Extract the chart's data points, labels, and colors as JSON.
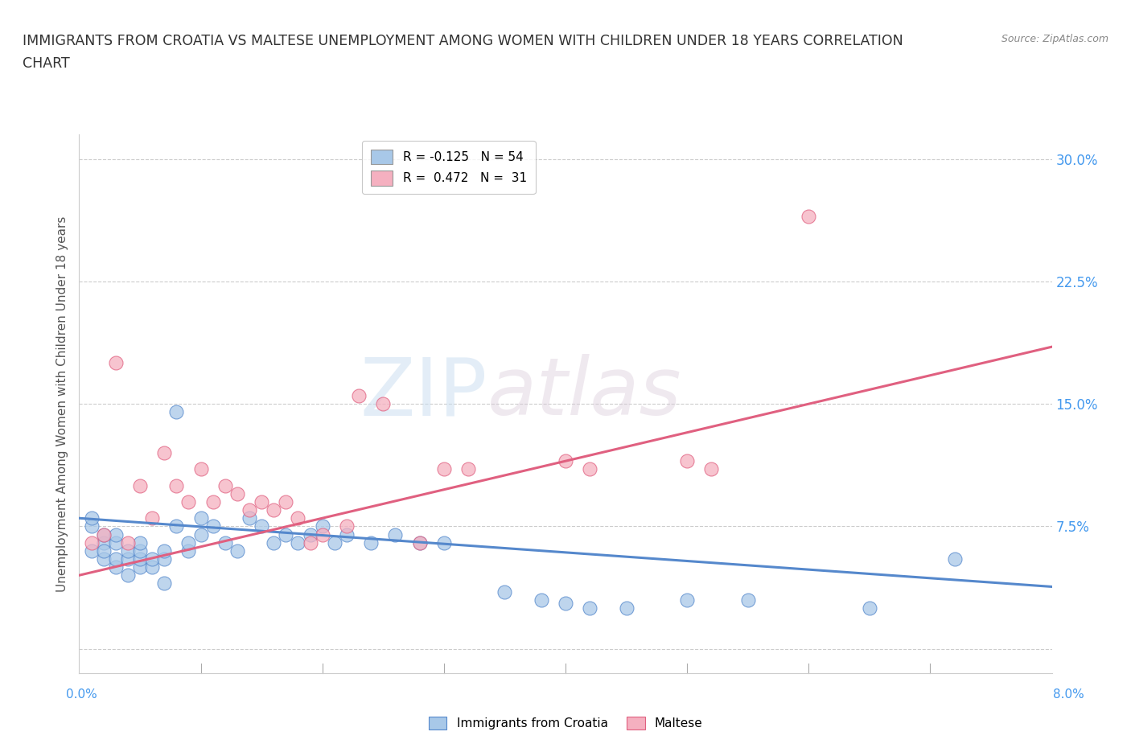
{
  "title_line1": "IMMIGRANTS FROM CROATIA VS MALTESE UNEMPLOYMENT AMONG WOMEN WITH CHILDREN UNDER 18 YEARS CORRELATION",
  "title_line2": "CHART",
  "source": "Source: ZipAtlas.com",
  "ylabel": "Unemployment Among Women with Children Under 18 years",
  "ytick_vals": [
    0.0,
    0.075,
    0.15,
    0.225,
    0.3
  ],
  "ytick_labels": [
    "",
    "7.5%",
    "15.0%",
    "22.5%",
    "30.0%"
  ],
  "xmin": 0.0,
  "xmax": 0.08,
  "ymin": -0.015,
  "ymax": 0.315,
  "legend_entries": [
    {
      "label": "R = -0.125   N = 54",
      "color": "#a8c8e8"
    },
    {
      "label": "R =  0.472   N =  31",
      "color": "#f5b0c0"
    }
  ],
  "croatia_color": "#a8c8e8",
  "maltese_color": "#f5b0c0",
  "croatia_edge": "#5588cc",
  "maltese_edge": "#e06080",
  "croatia_points_x": [
    0.001,
    0.001,
    0.001,
    0.002,
    0.002,
    0.002,
    0.002,
    0.003,
    0.003,
    0.003,
    0.003,
    0.004,
    0.004,
    0.004,
    0.005,
    0.005,
    0.005,
    0.005,
    0.006,
    0.006,
    0.007,
    0.007,
    0.007,
    0.008,
    0.008,
    0.009,
    0.009,
    0.01,
    0.01,
    0.011,
    0.012,
    0.013,
    0.014,
    0.015,
    0.016,
    0.017,
    0.018,
    0.019,
    0.02,
    0.021,
    0.022,
    0.024,
    0.026,
    0.028,
    0.03,
    0.035,
    0.038,
    0.04,
    0.042,
    0.045,
    0.05,
    0.055,
    0.065,
    0.072
  ],
  "croatia_points_y": [
    0.075,
    0.08,
    0.06,
    0.065,
    0.07,
    0.055,
    0.06,
    0.05,
    0.055,
    0.065,
    0.07,
    0.045,
    0.055,
    0.06,
    0.05,
    0.055,
    0.06,
    0.065,
    0.05,
    0.055,
    0.055,
    0.06,
    0.04,
    0.075,
    0.145,
    0.06,
    0.065,
    0.07,
    0.08,
    0.075,
    0.065,
    0.06,
    0.08,
    0.075,
    0.065,
    0.07,
    0.065,
    0.07,
    0.075,
    0.065,
    0.07,
    0.065,
    0.07,
    0.065,
    0.065,
    0.035,
    0.03,
    0.028,
    0.025,
    0.025,
    0.03,
    0.03,
    0.025,
    0.055
  ],
  "maltese_points_x": [
    0.001,
    0.002,
    0.003,
    0.004,
    0.005,
    0.006,
    0.007,
    0.008,
    0.009,
    0.01,
    0.011,
    0.012,
    0.013,
    0.014,
    0.015,
    0.016,
    0.017,
    0.018,
    0.019,
    0.02,
    0.022,
    0.023,
    0.025,
    0.028,
    0.03,
    0.032,
    0.04,
    0.042,
    0.05,
    0.052,
    0.06
  ],
  "maltese_points_y": [
    0.065,
    0.07,
    0.175,
    0.065,
    0.1,
    0.08,
    0.12,
    0.1,
    0.09,
    0.11,
    0.09,
    0.1,
    0.095,
    0.085,
    0.09,
    0.085,
    0.09,
    0.08,
    0.065,
    0.07,
    0.075,
    0.155,
    0.15,
    0.065,
    0.11,
    0.11,
    0.115,
    0.11,
    0.115,
    0.11,
    0.265
  ],
  "croatia_trend_x": [
    0.0,
    0.08
  ],
  "croatia_trend_y": [
    0.08,
    0.038
  ],
  "maltese_trend_x": [
    0.0,
    0.08
  ],
  "maltese_trend_y": [
    0.045,
    0.185
  ],
  "watermark_zip": "ZIP",
  "watermark_atlas": "atlas",
  "background_color": "#ffffff",
  "grid_color": "#cccccc"
}
